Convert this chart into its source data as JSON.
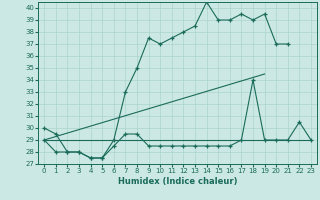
{
  "xlabel": "Humidex (Indice chaleur)",
  "background_color": "#cce8e4",
  "grid_color": "#aad4cc",
  "line_color": "#1a6b5a",
  "xlim": [
    -0.5,
    23.5
  ],
  "ylim": [
    27,
    40.5
  ],
  "yticks": [
    27,
    28,
    29,
    30,
    31,
    32,
    33,
    34,
    35,
    36,
    37,
    38,
    39,
    40
  ],
  "xticks": [
    0,
    1,
    2,
    3,
    4,
    5,
    6,
    7,
    8,
    9,
    10,
    11,
    12,
    13,
    14,
    15,
    16,
    17,
    18,
    19,
    20,
    21,
    22,
    23
  ],
  "series1": [
    30,
    29.5,
    28,
    28,
    27.5,
    27.5,
    29,
    33,
    35,
    37.5,
    37,
    37.5,
    38,
    38.5,
    40.5,
    39,
    39,
    39.5,
    39,
    39.5,
    37,
    37,
    null,
    null
  ],
  "series2": [
    29,
    28,
    28,
    28,
    27.5,
    27.5,
    28.5,
    29.5,
    29.5,
    28.5,
    28.5,
    28.5,
    28.5,
    28.5,
    28.5,
    28.5,
    28.5,
    29,
    34,
    29,
    29,
    29,
    30.5,
    29
  ],
  "series3_x": [
    0,
    23
  ],
  "series3_y": [
    29.0,
    29.0
  ],
  "series4_x": [
    0,
    19
  ],
  "series4_y": [
    29.0,
    34.5
  ]
}
